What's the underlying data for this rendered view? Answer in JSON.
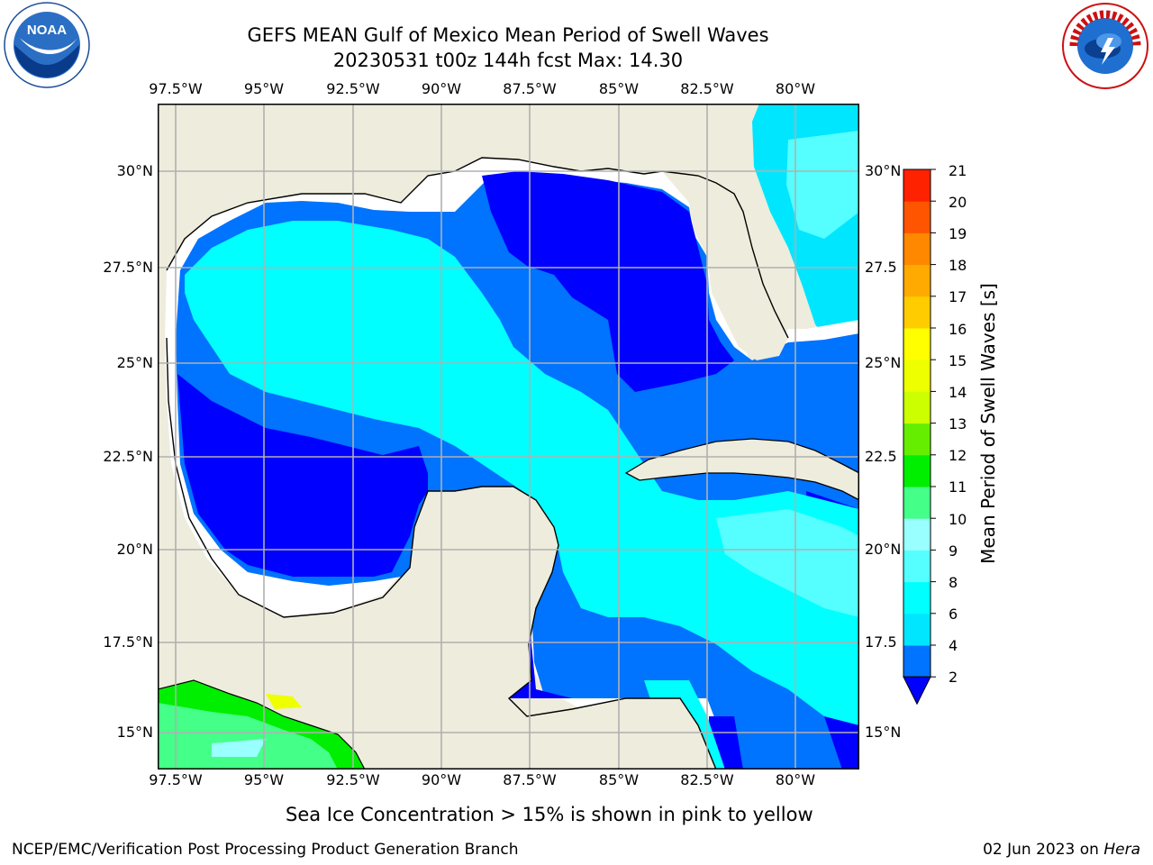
{
  "title": {
    "line1": "GEFS MEAN Gulf of Mexico Mean Period of Swell Waves",
    "line2": "20230531 t00z 144h fcst   Max: 14.30"
  },
  "logos": {
    "left_icon": "noaa-logo-icon",
    "left_text": "NOAA",
    "right_icon": "nws-logo-icon",
    "right_text": "NATIONAL WEATHER SERVICE"
  },
  "map": {
    "lon_labels": [
      "97.5°W",
      "95°W",
      "92.5°W",
      "90°W",
      "87.5°W",
      "85°W",
      "82.5°W",
      "80°W"
    ],
    "lat_labels": [
      "30°N",
      "27.5°N",
      "25°N",
      "22.5°N",
      "20°N",
      "17.5°N",
      "15°N"
    ],
    "lat_labels_right": [
      "30°N",
      "27.5",
      "25°N",
      "22.5",
      "20°N",
      "17.5",
      "15°N"
    ],
    "colors": {
      "land": "#eeecdc",
      "no_data": "#ffffff",
      "grid": "#b0b0b0",
      "coast": "#000000"
    }
  },
  "colorbar": {
    "label": "Mean Period of Swell Waves [s]",
    "ticks": [
      "21",
      "20",
      "19",
      "18",
      "17",
      "16",
      "15",
      "14",
      "13",
      "12",
      "11",
      "10",
      "9",
      "8",
      "6",
      "4",
      "2"
    ],
    "bands": [
      {
        "from": 2,
        "to": 4,
        "color": "#0073ff"
      },
      {
        "from": 4,
        "to": 6,
        "color": "#00e6ff"
      },
      {
        "from": 6,
        "to": 8,
        "color": "#00ffff"
      },
      {
        "from": 8,
        "to": 9,
        "color": "#55ffff"
      },
      {
        "from": 9,
        "to": 10,
        "color": "#99ffff"
      },
      {
        "from": 10,
        "to": 11,
        "color": "#44ff88"
      },
      {
        "from": 11,
        "to": 12,
        "color": "#00ee00"
      },
      {
        "from": 12,
        "to": 13,
        "color": "#66ee00"
      },
      {
        "from": 13,
        "to": 14,
        "color": "#ccff00"
      },
      {
        "from": 14,
        "to": 15,
        "color": "#eeff00"
      },
      {
        "from": 15,
        "to": 16,
        "color": "#ffff00"
      },
      {
        "from": 16,
        "to": 17,
        "color": "#ffcc00"
      },
      {
        "from": 17,
        "to": 18,
        "color": "#ffaa00"
      },
      {
        "from": 18,
        "to": 19,
        "color": "#ff8800"
      },
      {
        "from": 19,
        "to": 20,
        "color": "#ff5500"
      },
      {
        "from": 20,
        "to": 21,
        "color": "#ff2200"
      },
      {
        "from": 21,
        "to": 22,
        "color": "#ff0000"
      }
    ],
    "under_color": "#0000ff"
  },
  "caption": "Sea Ice Concentration > 15% is shown in pink to yellow",
  "footer": {
    "left": "NCEP/EMC/Verification Post Processing Product Generation Branch",
    "right_date": "02 Jun 2023 on ",
    "right_machine": "Hera"
  }
}
